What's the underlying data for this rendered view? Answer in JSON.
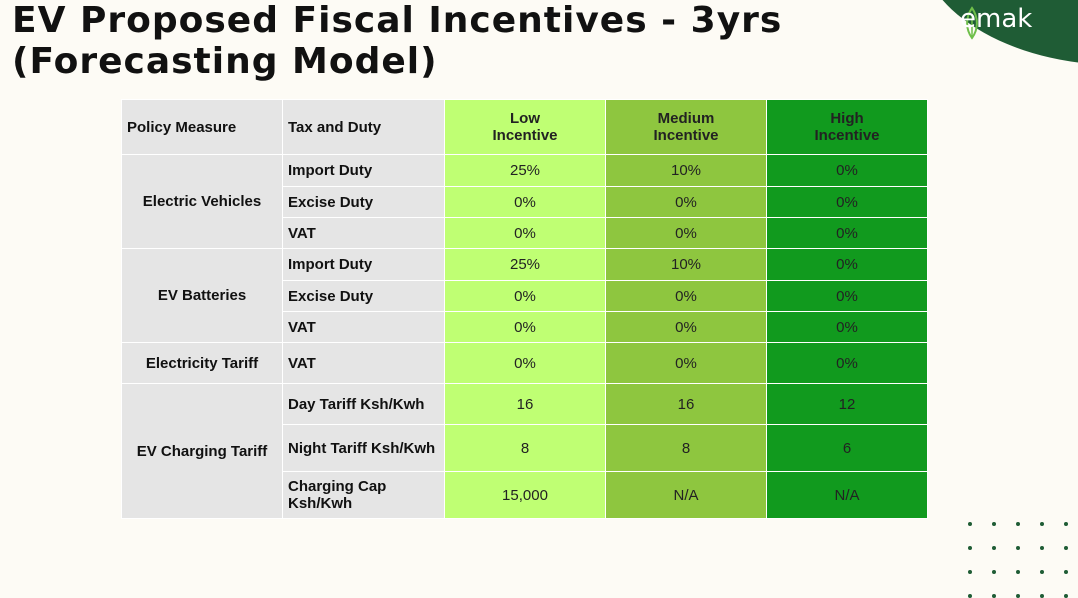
{
  "title": "EV Proposed Fiscal Incentives - 3yrs (Forecasting Model)",
  "logo": {
    "text": "emak",
    "icon": "leaf-icon",
    "color": "#1f5c35"
  },
  "colors": {
    "low": "#bfff73",
    "medium": "#8ec63f",
    "high": "#119a1e",
    "label": "#e5e5e5"
  },
  "table": {
    "headers": {
      "policy": "Policy Measure",
      "tax": "Tax and Duty",
      "low": [
        "Low",
        "Incentive"
      ],
      "medium": [
        "Medium",
        "Incentive"
      ],
      "high": [
        "High",
        "Incentive"
      ]
    },
    "groups": [
      {
        "policy": "Electric Vehicles",
        "rows": [
          {
            "tax": "Import Duty",
            "low": "25%",
            "medium": "10%",
            "high": "0%"
          },
          {
            "tax": "Excise Duty",
            "low": "0%",
            "medium": "0%",
            "high": "0%"
          },
          {
            "tax": "VAT",
            "low": "0%",
            "medium": "0%",
            "high": "0%"
          }
        ]
      },
      {
        "policy": "EV Batteries",
        "rows": [
          {
            "tax": "Import Duty",
            "low": "25%",
            "medium": "10%",
            "high": "0%"
          },
          {
            "tax": "Excise Duty",
            "low": "0%",
            "medium": "0%",
            "high": "0%"
          },
          {
            "tax": "VAT",
            "low": "0%",
            "medium": "0%",
            "high": "0%"
          }
        ]
      },
      {
        "policy": "Electricity Tariff",
        "rows": [
          {
            "tax": "VAT",
            "low": "0%",
            "medium": "0%",
            "high": "0%"
          }
        ]
      },
      {
        "policy": "EV Charging Tariff",
        "rows": [
          {
            "tax": "Day Tariff Ksh/Kwh",
            "low": "16",
            "medium": "16",
            "high": "12"
          },
          {
            "tax": "Night Tariff Ksh/Kwh",
            "low": "8",
            "medium": "8",
            "high": "6"
          },
          {
            "tax": "Charging Cap Ksh/Kwh",
            "low": "15,000",
            "medium": "N/A",
            "high": "N/A"
          }
        ]
      }
    ]
  }
}
